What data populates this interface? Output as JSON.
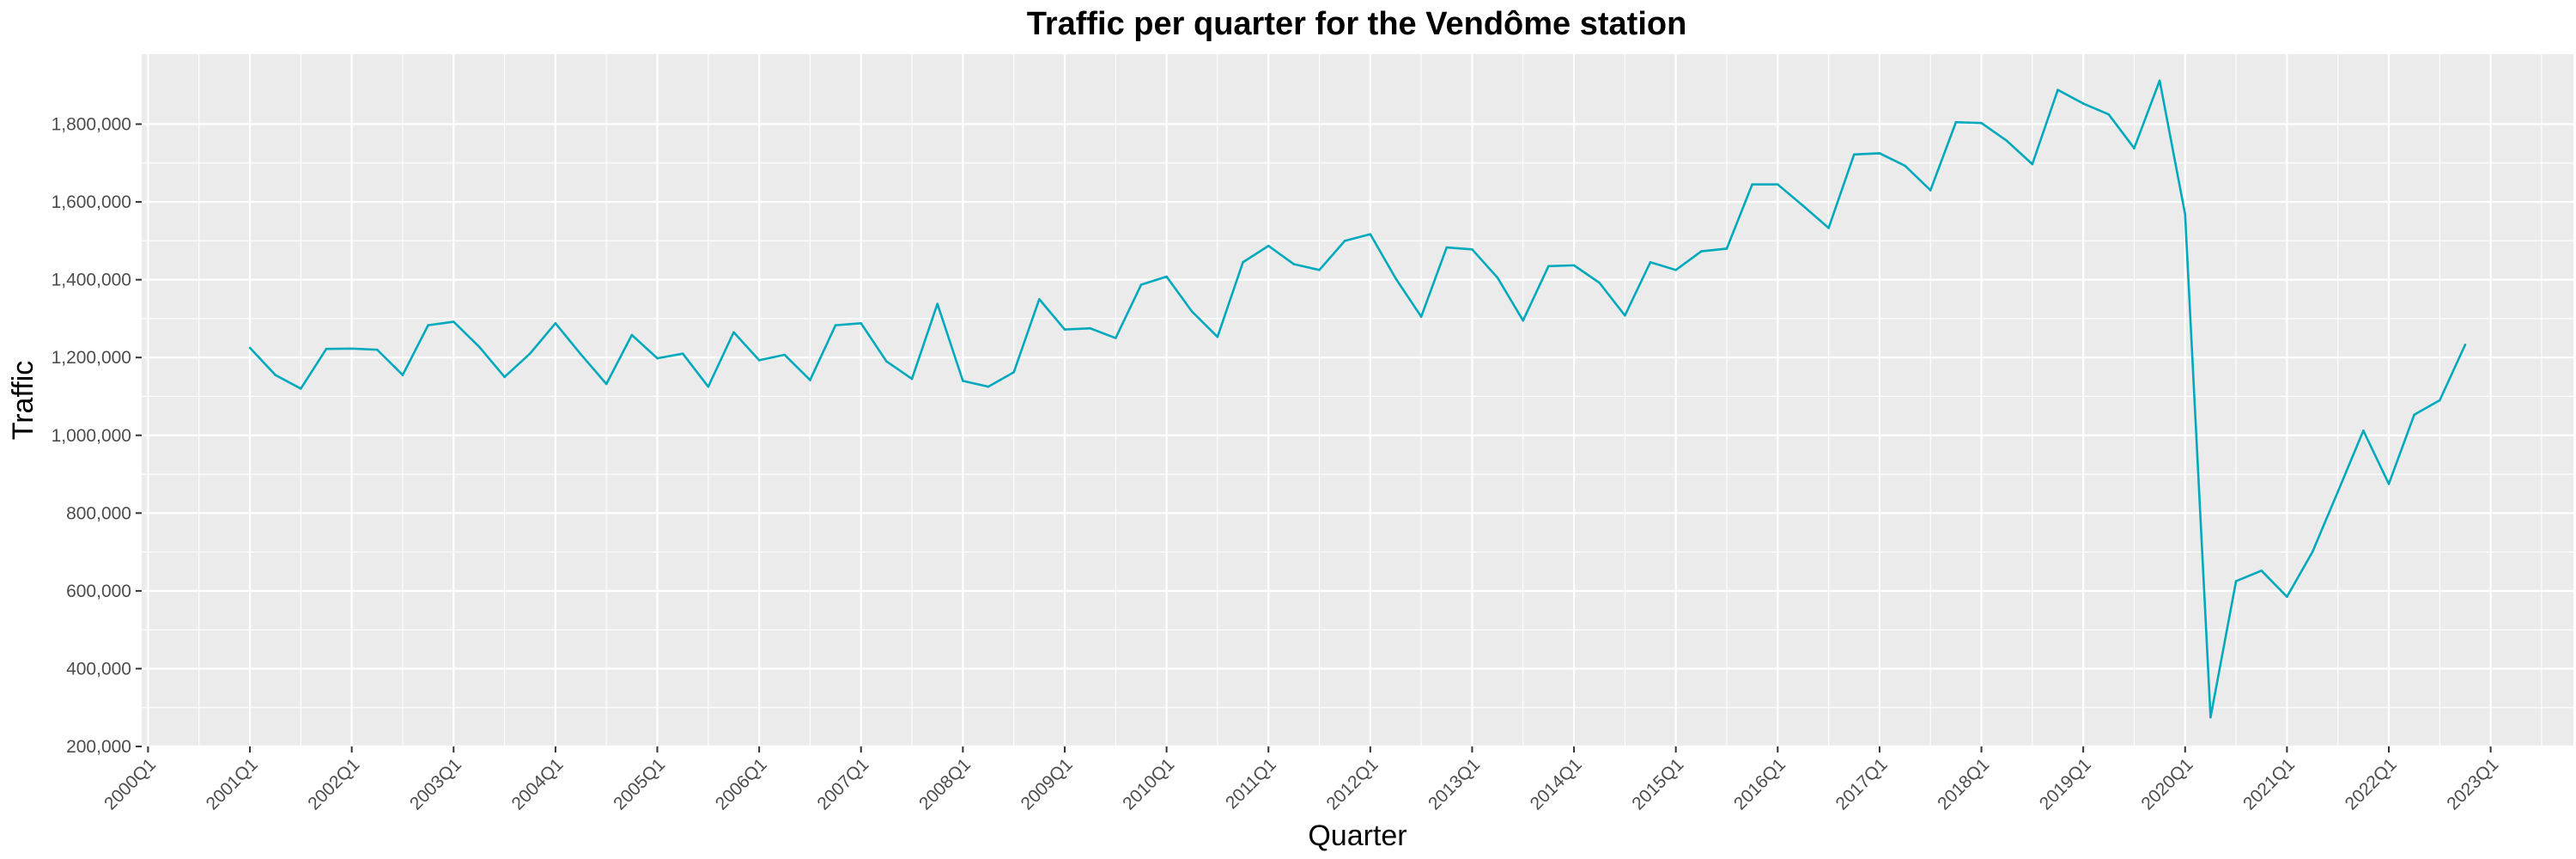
{
  "chart_data": {
    "type": "line",
    "title": "Traffic per quarter for the Vendôme station",
    "xlabel": "Quarter",
    "ylabel": "Traffic",
    "ylim": [
      200000,
      1980000
    ],
    "grid": true,
    "legend": "none",
    "x_ticks": [
      "2000Q1",
      "2001Q1",
      "2002Q1",
      "2003Q1",
      "2004Q1",
      "2005Q1",
      "2006Q1",
      "2007Q1",
      "2008Q1",
      "2009Q1",
      "2010Q1",
      "2011Q1",
      "2012Q1",
      "2013Q1",
      "2014Q1",
      "2015Q1",
      "2016Q1",
      "2017Q1",
      "2018Q1",
      "2019Q1",
      "2020Q1",
      "2021Q1",
      "2022Q1",
      "2023Q1"
    ],
    "y_ticks": [
      200000,
      400000,
      600000,
      800000,
      1000000,
      1200000,
      1400000,
      1600000,
      1800000
    ],
    "y_tick_labels": [
      "200,000",
      "400,000",
      "600,000",
      "800,000",
      "1,000,000",
      "1,200,000",
      "1,400,000",
      "1,600,000",
      "1,800,000"
    ],
    "x_range": [
      "2000Q1",
      "2023Q4"
    ],
    "series": [
      {
        "color": "#00A9BC",
        "x_start": "2001Q1",
        "values": [
          1225000,
          1155000,
          1120000,
          1222000,
          1223000,
          1220000,
          1155000,
          1283000,
          1292000,
          1228000,
          1150000,
          1210000,
          1288000,
          1208000,
          1132000,
          1258000,
          1198000,
          1210000,
          1125000,
          1265000,
          1193000,
          1207000,
          1142000,
          1283000,
          1288000,
          1190000,
          1145000,
          1338000,
          1140000,
          1125000,
          1162000,
          1350000,
          1272000,
          1275000,
          1250000,
          1387000,
          1408000,
          1318000,
          1253000,
          1445000,
          1487000,
          1440000,
          1425000,
          1500000,
          1517000,
          1403000,
          1305000,
          1483000,
          1478000,
          1405000,
          1295000,
          1435000,
          1437000,
          1392000,
          1308000,
          1445000,
          1425000,
          1473000,
          1480000,
          1645000,
          1645000,
          1590000,
          1533000,
          1722000,
          1725000,
          1693000,
          1630000,
          1805000,
          1803000,
          1757000,
          1697000,
          1888000,
          1853000,
          1825000,
          1738000,
          1912000,
          1568000,
          275000,
          625000,
          652000,
          585000,
          700000,
          855000,
          1012000,
          875000,
          1053000,
          1090000,
          1233000
        ]
      }
    ]
  }
}
